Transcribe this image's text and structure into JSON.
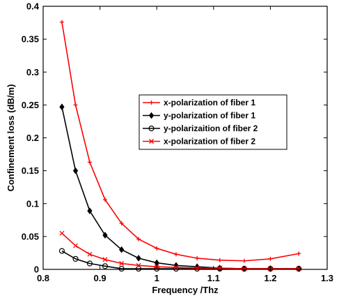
{
  "chart_data": {
    "type": "line",
    "title": "",
    "xlabel": "Frequency /Thz",
    "ylabel": "Confinement loss (dB/m)",
    "xlim": [
      0.8,
      1.3
    ],
    "ylim": [
      0,
      0.4
    ],
    "xticks": [
      0.8,
      0.9,
      1,
      1.1,
      1.2,
      1.3
    ],
    "xtick_labels": [
      "0.8",
      "0.9",
      "1",
      "1.1",
      "1.2",
      "1.3"
    ],
    "yticks": [
      0,
      0.05,
      0.1,
      0.15,
      0.2,
      0.25,
      0.3,
      0.35,
      0.4
    ],
    "ytick_labels": [
      "0",
      "0.05",
      "0.1",
      "0.15",
      "0.2",
      "0.25",
      "0.3",
      "0.35",
      "0.4"
    ],
    "grid": false,
    "legend_position": "center-right",
    "series": [
      {
        "name": "x-polarization of fiber 1",
        "color": "#ff0000",
        "marker": "plus",
        "x": [
          0.833,
          0.857,
          0.882,
          0.909,
          0.938,
          0.968,
          1.0,
          1.034,
          1.071,
          1.111,
          1.154,
          1.2,
          1.25
        ],
        "y": [
          0.376,
          0.25,
          0.163,
          0.106,
          0.07,
          0.046,
          0.032,
          0.023,
          0.017,
          0.014,
          0.013,
          0.016,
          0.024
        ]
      },
      {
        "name": "y-polarization of fiber 1",
        "color": "#000000",
        "marker": "diamond",
        "x": [
          0.833,
          0.857,
          0.882,
          0.909,
          0.938,
          0.968,
          1.0,
          1.034,
          1.071,
          1.111,
          1.154,
          1.2,
          1.25
        ],
        "y": [
          0.247,
          0.15,
          0.089,
          0.052,
          0.03,
          0.017,
          0.01,
          0.006,
          0.004,
          0.002,
          0.001,
          0.001,
          0.001
        ]
      },
      {
        "name": "y-polarizaition of fiber 2",
        "color": "#000000",
        "marker": "circle",
        "x": [
          0.833,
          0.857,
          0.882,
          0.909,
          0.938,
          0.968,
          1.0,
          1.034,
          1.071,
          1.111,
          1.154,
          1.2,
          1.25
        ],
        "y": [
          0.028,
          0.016,
          0.009,
          0.005,
          0.001,
          0.001,
          0.001,
          0.001,
          0.001,
          0.001,
          0.001,
          0.001,
          0.001
        ]
      },
      {
        "name": "x-polarization of fiber 2",
        "color": "#ff0000",
        "marker": "x",
        "x": [
          0.833,
          0.857,
          0.882,
          0.909,
          0.938,
          0.968,
          1.0,
          1.034,
          1.071,
          1.111,
          1.154,
          1.2,
          1.25
        ],
        "y": [
          0.055,
          0.036,
          0.023,
          0.015,
          0.009,
          0.006,
          0.004,
          0.003,
          0.002,
          0.002,
          0.001,
          0.001,
          0.001
        ]
      }
    ]
  }
}
